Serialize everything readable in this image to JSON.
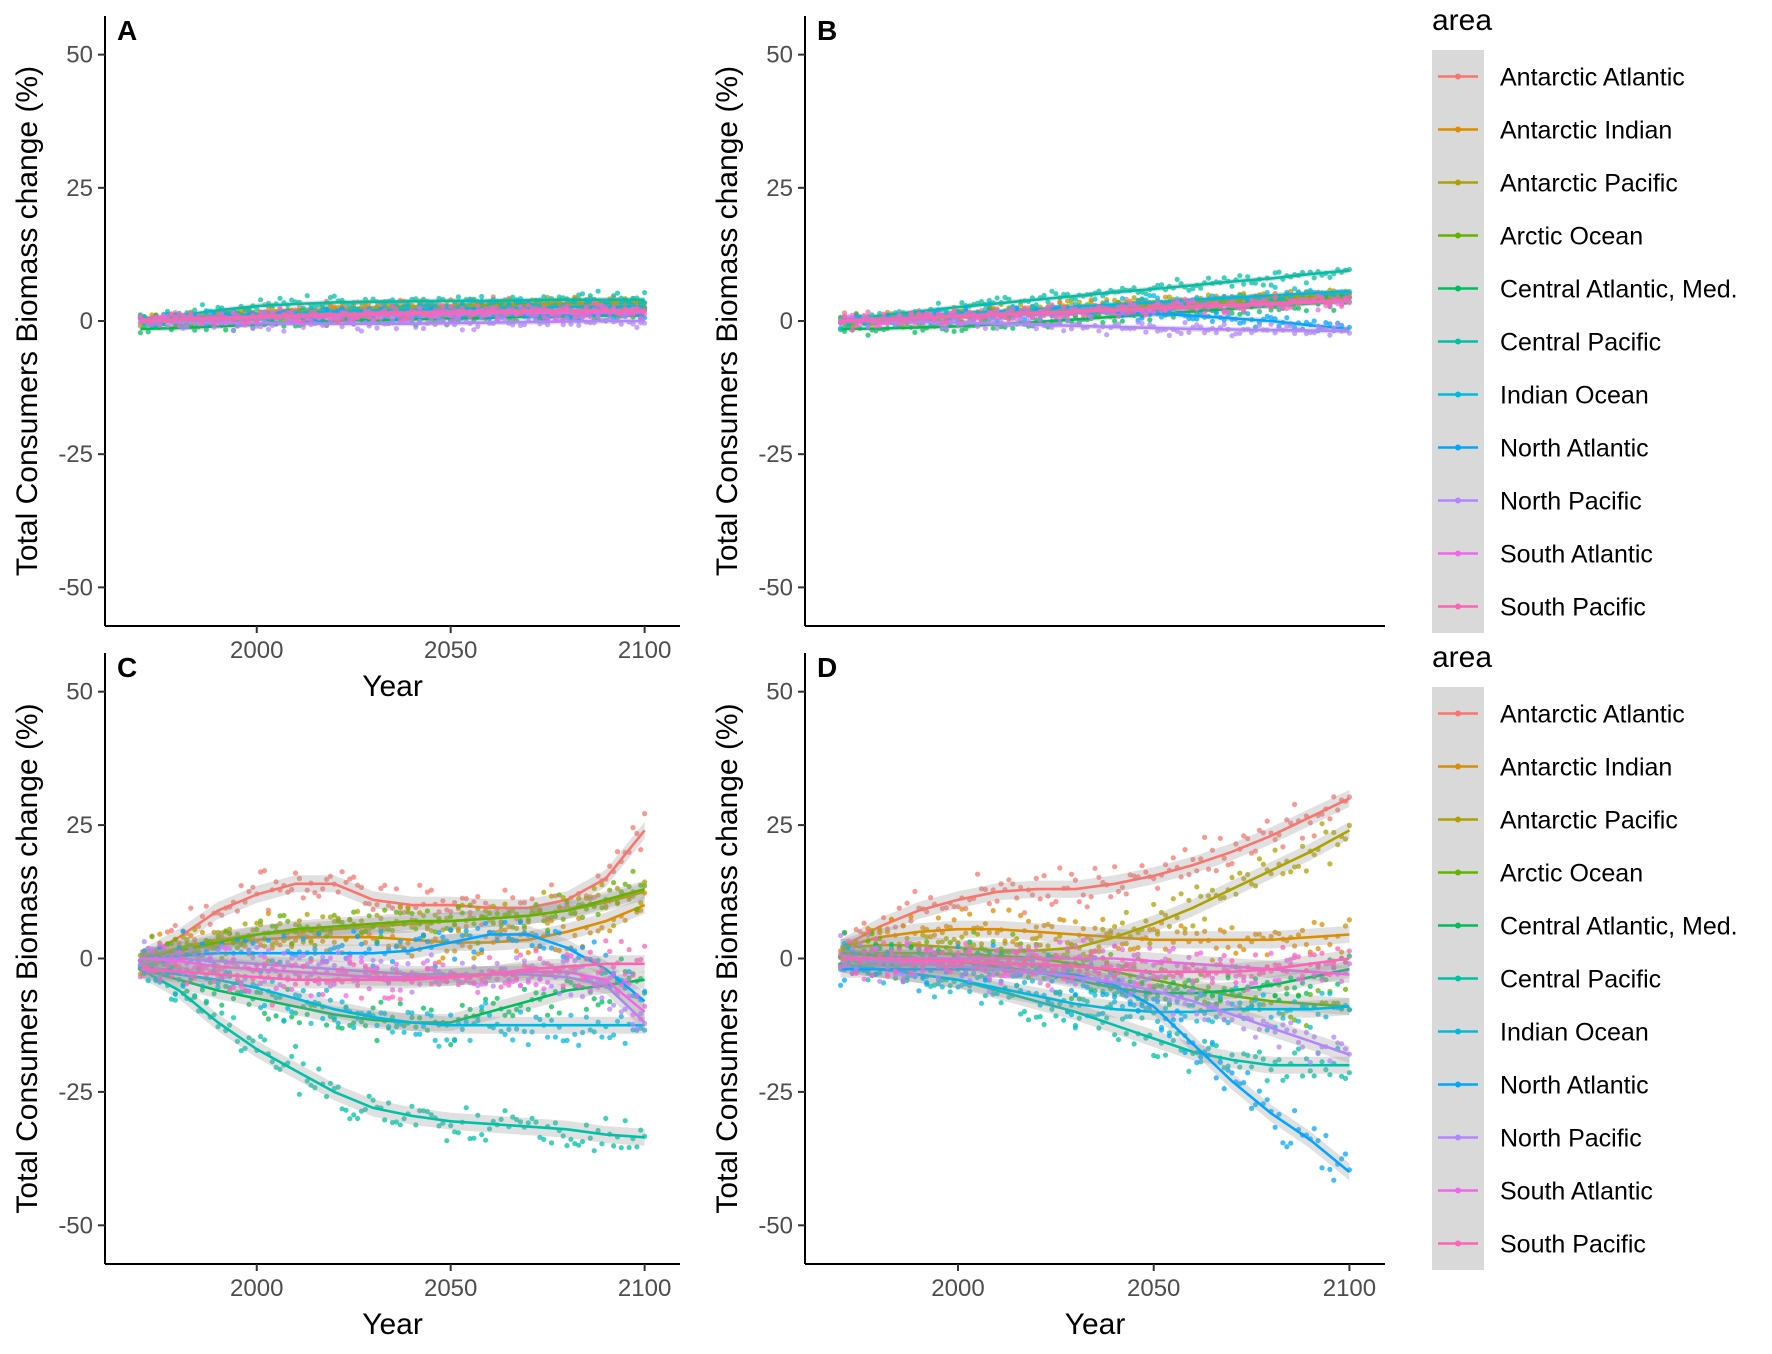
{
  "legend": {
    "title": "area",
    "entries": [
      {
        "name": "Antarctic Atlantic",
        "color": "#F8766D"
      },
      {
        "name": "Antarctic Indian",
        "color": "#DB8E00"
      },
      {
        "name": "Antarctic Pacific",
        "color": "#AEA200"
      },
      {
        "name": "Arctic Ocean",
        "color": "#64B200"
      },
      {
        "name": "Central Atlantic, Med.",
        "color": "#00BD5C"
      },
      {
        "name": "Central Pacific",
        "color": "#00C1A7"
      },
      {
        "name": "Indian Ocean",
        "color": "#00BADE"
      },
      {
        "name": "North Atlantic",
        "color": "#00A6FF"
      },
      {
        "name": "North Pacific",
        "color": "#B385FF"
      },
      {
        "name": "South Atlantic",
        "color": "#EF67EB"
      },
      {
        "name": "South Pacific",
        "color": "#FF63B6"
      }
    ]
  },
  "chart_data": [
    {
      "type": "scatter",
      "panel": "A",
      "title": "",
      "xlabel": "Year",
      "ylabel": "Total Consumers Biomass change (%)",
      "xlim": [
        1965,
        2105
      ],
      "ylim": [
        -55,
        55
      ],
      "xticks": [
        2000,
        2050,
        2100
      ],
      "yticks": [
        -50,
        -25,
        0,
        25,
        50
      ],
      "smooth": true,
      "x": [
        1970,
        1980,
        1990,
        2000,
        2010,
        2020,
        2030,
        2040,
        2050,
        2060,
        2070,
        2080,
        2090,
        2100
      ],
      "series": [
        {
          "name": "Antarctic Atlantic",
          "values": [
            0,
            0.5,
            1,
            1.5,
            2,
            2.2,
            2.5,
            2.7,
            2.8,
            3,
            3,
            3.2,
            3.3,
            3.5
          ]
        },
        {
          "name": "Antarctic Indian",
          "values": [
            0,
            0.3,
            0.8,
            1.2,
            1.6,
            2,
            2.2,
            2.5,
            2.7,
            2.8,
            3,
            3,
            3.1,
            3.2
          ]
        },
        {
          "name": "Antarctic Pacific",
          "values": [
            0,
            0.5,
            1,
            1.3,
            1.7,
            2,
            2.3,
            2.5,
            2.7,
            3,
            3.1,
            3.3,
            3.4,
            3.5
          ]
        },
        {
          "name": "Arctic Ocean",
          "values": [
            0,
            0.2,
            0.4,
            0.6,
            0.8,
            1,
            1.2,
            1.3,
            1.5,
            1.6,
            1.7,
            1.8,
            1.9,
            2
          ]
        },
        {
          "name": "Central Atlantic, Med.",
          "values": [
            -1.5,
            -1.3,
            -1,
            -0.7,
            -0.3,
            0,
            0.2,
            0.3,
            0.5,
            0.6,
            0.8,
            0.9,
            1,
            1
          ]
        },
        {
          "name": "Central Pacific",
          "values": [
            0,
            1,
            2,
            2.8,
            3.2,
            3.5,
            3.6,
            3.7,
            3.8,
            3.8,
            3.9,
            4,
            4,
            4
          ]
        },
        {
          "name": "Indian Ocean",
          "values": [
            0,
            0.5,
            0.9,
            1.2,
            1.5,
            1.8,
            2,
            2.1,
            2.3,
            2.4,
            2.5,
            2.6,
            2.7,
            2.7
          ]
        },
        {
          "name": "North Atlantic",
          "values": [
            0,
            0.3,
            0.5,
            0.7,
            0.9,
            1,
            1.1,
            1.2,
            1.2,
            1.3,
            1.3,
            1.3,
            1.3,
            1.3
          ]
        },
        {
          "name": "North Pacific",
          "values": [
            0,
            -0.2,
            -0.3,
            -0.4,
            -0.5,
            -0.5,
            -0.5,
            -0.5,
            -0.4,
            -0.3,
            -0.2,
            -0.1,
            0,
            0
          ]
        },
        {
          "name": "South Atlantic",
          "values": [
            0,
            0.2,
            0.4,
            0.6,
            0.8,
            1,
            1.1,
            1.2,
            1.3,
            1.4,
            1.5,
            1.5,
            1.6,
            1.6
          ]
        },
        {
          "name": "South Pacific",
          "values": [
            0,
            0.3,
            0.5,
            0.8,
            1,
            1.2,
            1.4,
            1.5,
            1.7,
            1.8,
            1.9,
            2,
            2,
            2
          ]
        }
      ]
    },
    {
      "type": "scatter",
      "panel": "B",
      "title": "",
      "xlabel": "",
      "ylabel": "Total Consumers Biomass change (%)",
      "xlim": [
        1965,
        2105
      ],
      "ylim": [
        -55,
        55
      ],
      "xticks": [],
      "yticks": [
        -50,
        -25,
        0,
        25,
        50
      ],
      "smooth": true,
      "x": [
        1970,
        1980,
        1990,
        2000,
        2010,
        2020,
        2030,
        2040,
        2050,
        2060,
        2070,
        2080,
        2090,
        2100
      ],
      "series": [
        {
          "name": "Antarctic Atlantic",
          "values": [
            0,
            0.3,
            0.7,
            1,
            1.3,
            1.7,
            2,
            2.3,
            2.6,
            3,
            3.3,
            3.6,
            4,
            4.3
          ]
        },
        {
          "name": "Antarctic Indian",
          "values": [
            0,
            0.4,
            0.8,
            1.2,
            1.6,
            2,
            2.4,
            2.8,
            3.2,
            3.6,
            4,
            4.4,
            4.8,
            5
          ]
        },
        {
          "name": "Antarctic Pacific",
          "values": [
            0,
            0.4,
            0.8,
            1.2,
            1.6,
            2,
            2.4,
            2.8,
            3.2,
            3.6,
            4,
            4.3,
            4.6,
            5
          ]
        },
        {
          "name": "Arctic Ocean",
          "values": [
            0,
            0.3,
            0.6,
            1,
            1.3,
            1.6,
            2,
            2.3,
            2.6,
            3,
            3.3,
            3.6,
            4,
            4.2
          ]
        },
        {
          "name": "Central Atlantic, Med.",
          "values": [
            -1.5,
            -1.4,
            -1.2,
            -1,
            -0.6,
            -0.2,
            0.3,
            0.8,
            1.3,
            1.8,
            2.3,
            2.8,
            3.3,
            3.8
          ]
        },
        {
          "name": "Central Pacific",
          "values": [
            0,
            1,
            1.8,
            2.6,
            3.3,
            4,
            4.7,
            5.4,
            6,
            6.7,
            7.4,
            8,
            8.8,
            9.5
          ]
        },
        {
          "name": "Indian Ocean",
          "values": [
            0,
            0.4,
            0.9,
            1.3,
            1.8,
            2.2,
            2.7,
            3.1,
            3.5,
            4,
            4.4,
            4.8,
            5.2,
            5.6
          ]
        },
        {
          "name": "North Atlantic",
          "values": [
            0,
            0.3,
            0.6,
            0.9,
            1.2,
            1.4,
            1.6,
            1.6,
            1.4,
            1,
            0.5,
            0,
            -0.8,
            -1.5
          ]
        },
        {
          "name": "North Pacific",
          "values": [
            0,
            -0.1,
            -0.2,
            -0.3,
            -0.5,
            -0.7,
            -0.9,
            -1.1,
            -1.3,
            -1.5,
            -1.6,
            -1.7,
            -1.8,
            -1.9
          ]
        },
        {
          "name": "South Atlantic",
          "values": [
            0,
            0.3,
            0.6,
            0.9,
            1.2,
            1.5,
            1.8,
            2.1,
            2.4,
            2.7,
            3,
            3.2,
            3.5,
            3.7
          ]
        },
        {
          "name": "South Pacific",
          "values": [
            0,
            0.3,
            0.6,
            0.9,
            1.2,
            1.5,
            1.8,
            2.1,
            2.4,
            2.7,
            3,
            3.3,
            3.6,
            4
          ]
        }
      ]
    },
    {
      "type": "scatter",
      "panel": "C",
      "title": "",
      "xlabel": "Year",
      "ylabel": "Total Consumers Biomass change (%)",
      "xlim": [
        1965,
        2105
      ],
      "ylim": [
        -55,
        55
      ],
      "xticks": [
        2000,
        2050,
        2100
      ],
      "yticks": [
        -50,
        -25,
        0,
        25,
        50
      ],
      "smooth": true,
      "x": [
        1970,
        1980,
        1990,
        2000,
        2010,
        2020,
        2030,
        2040,
        2050,
        2060,
        2070,
        2080,
        2090,
        2100
      ],
      "series": [
        {
          "name": "Antarctic Atlantic",
          "values": [
            0,
            4,
            9,
            12,
            14,
            14,
            11,
            10,
            10,
            9.5,
            9.5,
            11,
            15,
            24
          ]
        },
        {
          "name": "Antarctic Indian",
          "values": [
            0,
            1.5,
            2.5,
            3.5,
            4,
            4,
            4,
            3.5,
            3,
            3,
            3.5,
            5,
            7,
            10
          ]
        },
        {
          "name": "Antarctic Pacific",
          "values": [
            0,
            2,
            3.5,
            4.5,
            5,
            5.5,
            6,
            6.5,
            7,
            7.5,
            8,
            9,
            10.5,
            12.5
          ]
        },
        {
          "name": "Arctic Ocean",
          "values": [
            0,
            1.5,
            3,
            4.5,
            5.5,
            6,
            6.5,
            7,
            7,
            7.5,
            8,
            9,
            11,
            13
          ]
        },
        {
          "name": "Central Atlantic, Med.",
          "values": [
            -2,
            -4,
            -6,
            -7.5,
            -9,
            -10.5,
            -11.5,
            -12,
            -12,
            -10,
            -8,
            -6,
            -5,
            -4
          ]
        },
        {
          "name": "Central Pacific",
          "values": [
            -2,
            -6,
            -12,
            -17,
            -21,
            -25,
            -28,
            -29.5,
            -30.5,
            -31,
            -31.5,
            -32,
            -33,
            -33.5
          ]
        },
        {
          "name": "Indian Ocean",
          "values": [
            -2,
            -3,
            -4,
            -5.5,
            -7.5,
            -9.5,
            -11,
            -12,
            -12.5,
            -12.5,
            -12.5,
            -12.5,
            -12.5,
            -12.5
          ]
        },
        {
          "name": "North Atlantic",
          "values": [
            0,
            0.5,
            1,
            1,
            1,
            1,
            1,
            1.5,
            3,
            4.5,
            4.5,
            2,
            -2,
            -8
          ]
        },
        {
          "name": "North Pacific",
          "values": [
            0,
            0,
            -0.5,
            -1,
            -1.5,
            -2,
            -2.5,
            -3,
            -3,
            -3,
            -3,
            -3.5,
            -5,
            -12
          ]
        },
        {
          "name": "South Atlantic",
          "values": [
            0,
            -0.5,
            -1.5,
            -2,
            -2.5,
            -3,
            -3.5,
            -3.5,
            -3.5,
            -3,
            -2.5,
            -2.5,
            -4,
            -10
          ]
        },
        {
          "name": "South Pacific",
          "values": [
            -2,
            -2.5,
            -3,
            -3.5,
            -4,
            -4,
            -4,
            -4,
            -3.5,
            -3,
            -2,
            -1.5,
            -1,
            -1
          ]
        }
      ]
    },
    {
      "type": "scatter",
      "panel": "D",
      "title": "",
      "xlabel": "Year",
      "ylabel": "Total Consumers Biomass change (%)",
      "xlim": [
        1965,
        2105
      ],
      "ylim": [
        -55,
        55
      ],
      "xticks": [
        2000,
        2050,
        2100
      ],
      "yticks": [
        -50,
        -25,
        0,
        25,
        50
      ],
      "smooth": true,
      "x": [
        1970,
        1980,
        1990,
        2000,
        2010,
        2020,
        2030,
        2040,
        2050,
        2060,
        2070,
        2080,
        2090,
        2100
      ],
      "series": [
        {
          "name": "Antarctic Atlantic",
          "values": [
            2,
            6,
            9,
            11,
            12.5,
            13,
            13,
            14,
            15.5,
            17.5,
            20,
            23,
            26.5,
            30
          ]
        },
        {
          "name": "Antarctic Indian",
          "values": [
            2,
            4,
            5,
            5.5,
            5.5,
            5,
            4.5,
            4,
            3.5,
            3.5,
            3.5,
            3.5,
            4,
            4.5
          ]
        },
        {
          "name": "Antarctic Pacific",
          "values": [
            2,
            2.5,
            2.5,
            2,
            1.5,
            1.5,
            2,
            4,
            6.5,
            9.5,
            13,
            16.5,
            20,
            24
          ]
        },
        {
          "name": "Arctic Ocean",
          "values": [
            1,
            1,
            1,
            0.8,
            0.5,
            0,
            -1,
            -2.5,
            -4,
            -5.5,
            -7,
            -8,
            -8.5,
            -9
          ]
        },
        {
          "name": "Central Atlantic, Med.",
          "values": [
            1,
            0.5,
            0,
            -0.5,
            -1.5,
            -2.5,
            -4,
            -5.5,
            -6.5,
            -6.5,
            -6,
            -5,
            -3.5,
            -2
          ]
        },
        {
          "name": "Central Pacific",
          "values": [
            -1,
            -2,
            -3,
            -4,
            -6,
            -8,
            -10,
            -12.5,
            -15,
            -17.5,
            -19,
            -20,
            -20,
            -20
          ]
        },
        {
          "name": "Indian Ocean",
          "values": [
            -1,
            -2,
            -3,
            -4,
            -5.5,
            -7,
            -8.5,
            -9.5,
            -10,
            -10,
            -9.5,
            -9.5,
            -9.5,
            -9
          ]
        },
        {
          "name": "North Atlantic",
          "values": [
            -2,
            -2,
            -2,
            -2,
            -2,
            -2.5,
            -3,
            -5,
            -9,
            -16,
            -23,
            -29,
            -34,
            -40
          ]
        },
        {
          "name": "North Pacific",
          "values": [
            0,
            -0.5,
            -1,
            -1.5,
            -2,
            -2.5,
            -3.5,
            -4.5,
            -6,
            -8,
            -10.5,
            -13,
            -15.5,
            -18
          ]
        },
        {
          "name": "South Atlantic",
          "values": [
            0,
            0,
            0,
            0,
            0,
            0,
            0,
            0,
            -0.5,
            -1,
            -1.5,
            -2,
            -2.5,
            -3
          ]
        },
        {
          "name": "South Pacific",
          "values": [
            0,
            0,
            -0.5,
            -0.5,
            -1,
            -1,
            -1.5,
            -2,
            -2.5,
            -2.5,
            -2.5,
            -2,
            -1,
            0
          ]
        }
      ]
    }
  ]
}
